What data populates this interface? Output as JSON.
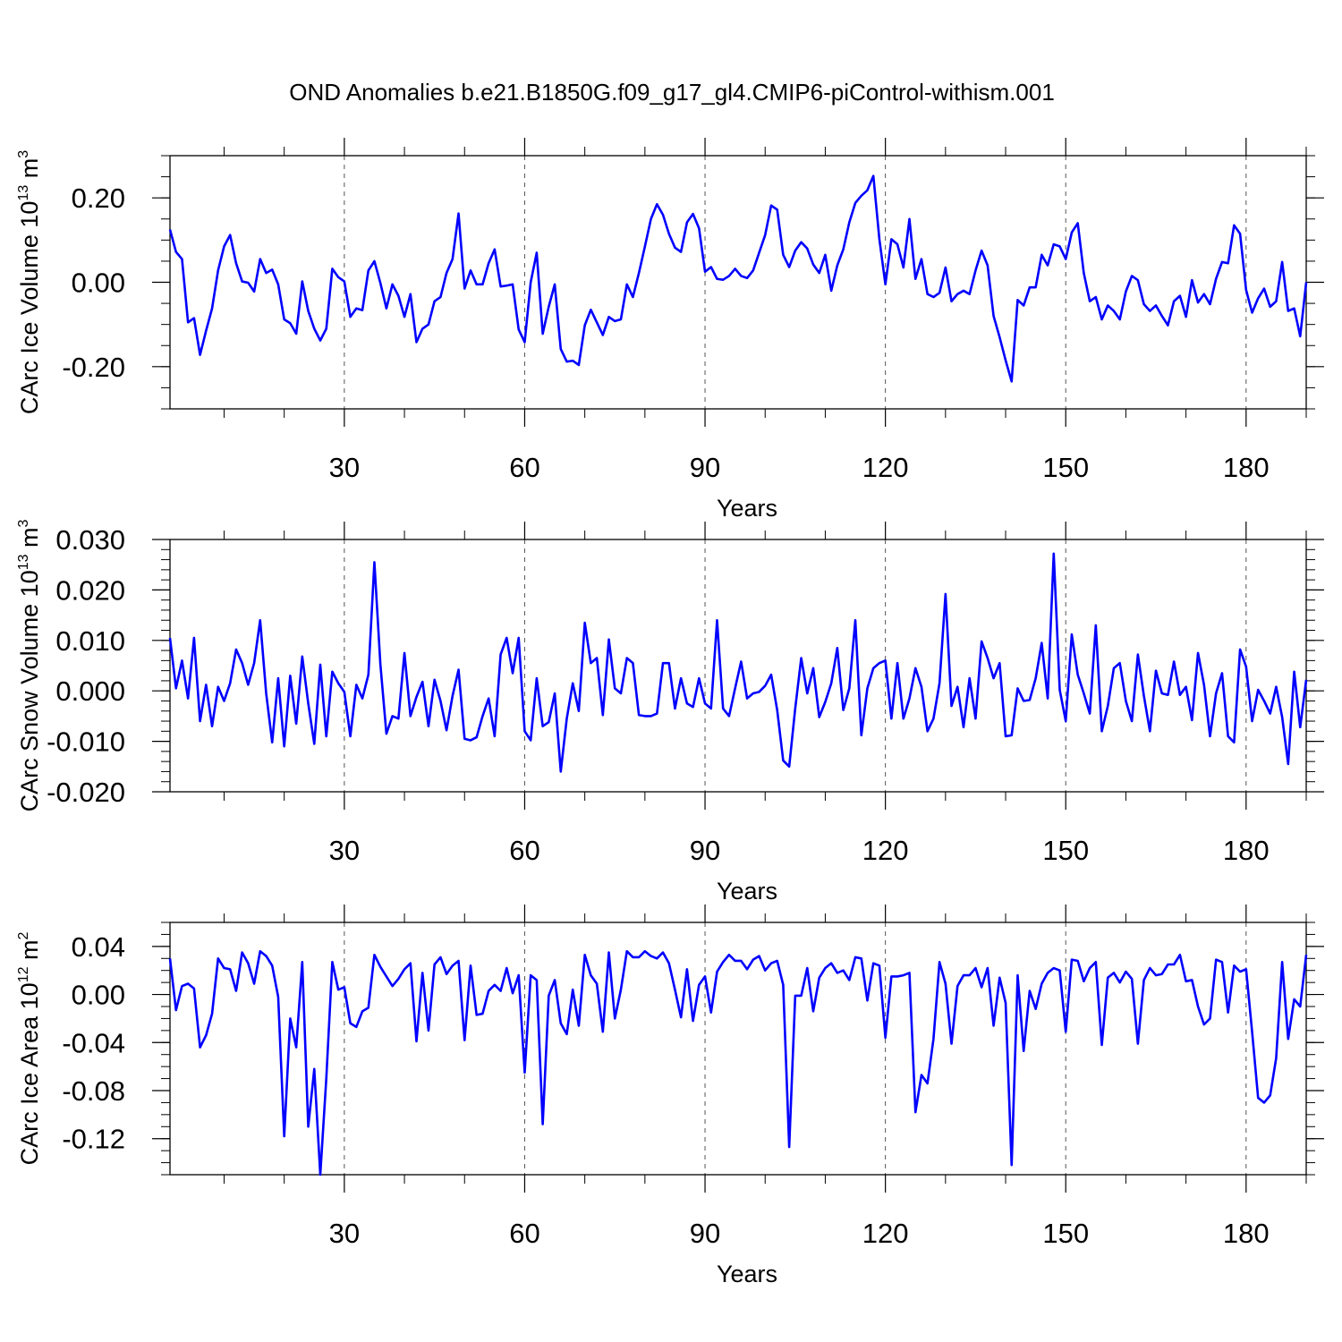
{
  "title": "OND Anomalies b.e21.B1850G.f09_g17_gl4.CMIP6-piControl-withism.001",
  "colors": {
    "series": "#0000ff",
    "axis": "#000000",
    "grid": "#555555"
  },
  "chart_data": [
    {
      "type": "line",
      "ylabel": {
        "prefix": "CArc Ice Volume 10",
        "exp": "13",
        "unit": " m",
        "unit_exp": "3"
      },
      "xlabel": "Years",
      "xlim": [
        1,
        190
      ],
      "ylim": [
        -0.3,
        0.3
      ],
      "xticks": [
        30,
        60,
        90,
        120,
        150,
        180
      ],
      "yticks": [
        -0.2,
        0.0,
        0.2
      ],
      "ytick_labels": [
        "-0.20",
        "0.00",
        "0.20"
      ],
      "yminor_step": 0.05,
      "grid": "x-dashed",
      "series": [
        {
          "x_start": 1,
          "values": [
            0.125,
            0.072,
            0.055,
            -0.095,
            -0.085,
            -0.172,
            -0.115,
            -0.062,
            0.028,
            0.085,
            0.112,
            0.045,
            0.002,
            -0.001,
            -0.022,
            0.055,
            0.022,
            0.03,
            -0.005,
            -0.088,
            -0.097,
            -0.122,
            0.002,
            -0.068,
            -0.11,
            -0.138,
            -0.11,
            0.032,
            0.012,
            0.002,
            -0.082,
            -0.062,
            -0.066,
            0.028,
            0.05,
            -0.002,
            -0.062,
            -0.005,
            -0.032,
            -0.082,
            -0.028,
            -0.142,
            -0.11,
            -0.1,
            -0.045,
            -0.035,
            0.022,
            0.055,
            0.163,
            -0.015,
            0.028,
            -0.005,
            -0.005,
            0.045,
            0.078,
            -0.01,
            -0.008,
            -0.005,
            -0.112,
            -0.142,
            0.0,
            0.07,
            -0.122,
            -0.058,
            -0.005,
            -0.158,
            -0.188,
            -0.186,
            -0.196,
            -0.102,
            -0.065,
            -0.095,
            -0.125,
            -0.082,
            -0.092,
            -0.088,
            -0.005,
            -0.035,
            0.022,
            0.085,
            0.15,
            0.185,
            0.16,
            0.115,
            0.082,
            0.072,
            0.142,
            0.162,
            0.128,
            0.025,
            0.036,
            0.008,
            0.006,
            0.015,
            0.032,
            0.015,
            0.01,
            0.028,
            0.07,
            0.112,
            0.182,
            0.172,
            0.065,
            0.036,
            0.075,
            0.095,
            0.08,
            0.042,
            0.022,
            0.065,
            -0.02,
            0.04,
            0.078,
            0.142,
            0.188,
            0.205,
            0.218,
            0.252,
            0.102,
            -0.005,
            0.102,
            0.09,
            0.035,
            0.15,
            0.008,
            0.055,
            -0.028,
            -0.035,
            -0.025,
            0.035,
            -0.045,
            -0.028,
            -0.02,
            -0.028,
            0.028,
            0.075,
            0.04,
            -0.08,
            -0.13,
            -0.185,
            -0.235,
            -0.042,
            -0.055,
            -0.012,
            -0.012,
            0.065,
            0.04,
            0.09,
            0.085,
            0.055,
            0.118,
            0.14,
            0.022,
            -0.045,
            -0.035,
            -0.088,
            -0.055,
            -0.068,
            -0.088,
            -0.022,
            0.015,
            0.005,
            -0.052,
            -0.068,
            -0.055,
            -0.08,
            -0.102,
            -0.045,
            -0.032,
            -0.082,
            0.005,
            -0.048,
            -0.028,
            -0.052,
            0.008,
            0.048,
            0.045,
            0.135,
            0.115,
            -0.018,
            -0.072,
            -0.038,
            -0.015,
            -0.058,
            -0.045,
            0.048,
            -0.068,
            -0.062,
            -0.128,
            0.0
          ]
        }
      ]
    },
    {
      "type": "line",
      "ylabel": {
        "prefix": "CArc Snow Volume 10",
        "exp": "13",
        "unit": " m",
        "unit_exp": "3"
      },
      "xlabel": "Years",
      "xlim": [
        1,
        190
      ],
      "ylim": [
        -0.02,
        0.03
      ],
      "xticks": [
        30,
        60,
        90,
        120,
        150,
        180
      ],
      "yticks": [
        -0.02,
        -0.01,
        0.0,
        0.01,
        0.02,
        0.03
      ],
      "ytick_labels": [
        "-0.020",
        "-0.010",
        "0.000",
        "0.010",
        "0.020",
        "0.030"
      ],
      "yminor_step": 0.002,
      "grid": "x-dashed",
      "series": [
        {
          "x_start": 1,
          "values": [
            0.0105,
            0.0005,
            0.006,
            -0.0015,
            0.0105,
            -0.006,
            0.0012,
            -0.007,
            0.0008,
            -0.002,
            0.0015,
            0.0082,
            0.0055,
            0.0012,
            0.0055,
            0.014,
            -0.0005,
            -0.0102,
            0.0025,
            -0.011,
            0.003,
            -0.0065,
            0.0068,
            -0.0025,
            -0.0105,
            0.0052,
            -0.009,
            0.0038,
            0.0015,
            -0.0002,
            -0.009,
            0.0012,
            -0.0015,
            0.0032,
            0.0255,
            0.0052,
            -0.0085,
            -0.005,
            -0.0055,
            0.0075,
            -0.005,
            -0.0012,
            0.0018,
            -0.007,
            0.0022,
            -0.002,
            -0.0078,
            -0.001,
            0.0042,
            -0.0095,
            -0.0098,
            -0.0092,
            -0.005,
            -0.0015,
            -0.009,
            0.0072,
            0.0105,
            0.0035,
            0.0105,
            -0.008,
            -0.0098,
            0.0025,
            -0.007,
            -0.0062,
            -0.0005,
            -0.016,
            -0.0055,
            0.0015,
            -0.004,
            0.0135,
            0.0055,
            0.0065,
            -0.0048,
            0.0102,
            0.0005,
            -0.0005,
            0.0065,
            0.0055,
            -0.0048,
            -0.005,
            -0.005,
            -0.0045,
            0.0055,
            0.0055,
            -0.0035,
            0.0025,
            -0.0025,
            -0.0032,
            0.0025,
            -0.0025,
            -0.0035,
            0.014,
            -0.0035,
            -0.005,
            0.0005,
            0.0058,
            -0.0015,
            -0.0005,
            -0.0002,
            0.001,
            0.0032,
            -0.0038,
            -0.0138,
            -0.015,
            -0.0035,
            0.0065,
            -0.0005,
            0.0045,
            -0.0052,
            -0.0022,
            0.0015,
            0.0085,
            -0.0038,
            0.0005,
            0.014,
            -0.0088,
            0.0005,
            0.0045,
            0.0055,
            0.006,
            -0.0055,
            0.0055,
            -0.0055,
            -0.0015,
            0.0045,
            0.0008,
            -0.008,
            -0.0055,
            0.0015,
            0.0192,
            -0.003,
            0.0008,
            -0.0072,
            0.0025,
            -0.0055,
            0.0098,
            0.0065,
            0.0025,
            0.0055,
            -0.009,
            -0.0088,
            0.0005,
            -0.002,
            -0.0018,
            0.0025,
            0.0095,
            -0.0015,
            0.0272,
            0.0002,
            -0.006,
            0.0112,
            0.0032,
            -0.0005,
            -0.0045,
            0.013,
            -0.008,
            -0.003,
            0.0045,
            0.0055,
            -0.002,
            -0.006,
            0.0072,
            -0.001,
            -0.008,
            0.004,
            -0.0005,
            -0.0008,
            0.0058,
            -0.0008,
            0.0008,
            -0.0058,
            0.0075,
            0.0012,
            -0.009,
            -0.0005,
            0.0035,
            -0.009,
            -0.0102,
            0.0082,
            0.0048,
            -0.006,
            0.0002,
            -0.002,
            -0.0045,
            0.0008,
            -0.0052,
            -0.0145,
            0.0038,
            -0.0072,
            0.0022
          ]
        }
      ]
    },
    {
      "type": "line",
      "ylabel": {
        "prefix": "CArc Ice Area 10",
        "exp": "12",
        "unit": " m",
        "unit_exp": "2"
      },
      "xlabel": "Years",
      "xlim": [
        1,
        190
      ],
      "ylim": [
        -0.15,
        0.06
      ],
      "xticks": [
        30,
        60,
        90,
        120,
        150,
        180
      ],
      "yticks": [
        -0.12,
        -0.08,
        -0.04,
        0.0,
        0.04
      ],
      "ytick_labels": [
        "-0.12",
        "-0.08",
        "-0.04",
        "0.00",
        "0.04"
      ],
      "yminor_step": 0.01,
      "grid": "x-dashed",
      "series": [
        {
          "x_start": 1,
          "values": [
            0.03,
            -0.013,
            0.007,
            0.009,
            0.005,
            -0.044,
            -0.034,
            -0.016,
            0.03,
            0.022,
            0.021,
            0.003,
            0.035,
            0.026,
            0.009,
            0.036,
            0.032,
            0.024,
            -0.002,
            -0.118,
            -0.02,
            -0.044,
            0.027,
            -0.11,
            -0.062,
            -0.15,
            -0.07,
            0.027,
            0.004,
            0.006,
            -0.024,
            -0.027,
            -0.014,
            -0.011,
            0.033,
            0.023,
            0.015,
            0.007,
            0.013,
            0.021,
            0.026,
            -0.039,
            0.018,
            -0.03,
            0.025,
            0.031,
            0.017,
            0.024,
            0.028,
            -0.038,
            0.024,
            -0.017,
            -0.016,
            0.003,
            0.008,
            0.003,
            0.022,
            0.001,
            0.016,
            -0.065,
            0.016,
            0.012,
            -0.108,
            -0.001,
            0.012,
            -0.024,
            -0.033,
            0.004,
            -0.026,
            0.033,
            0.016,
            0.009,
            -0.031,
            0.035,
            -0.02,
            0.004,
            0.036,
            0.031,
            0.031,
            0.036,
            0.032,
            0.03,
            0.035,
            0.026,
            0.004,
            -0.019,
            0.021,
            -0.022,
            0.008,
            0.015,
            -0.015,
            0.019,
            0.027,
            0.033,
            0.028,
            0.028,
            0.021,
            0.029,
            0.032,
            0.02,
            0.026,
            0.028,
            0.008,
            -0.127,
            -0.001,
            -0.001,
            0.022,
            -0.014,
            0.014,
            0.022,
            0.026,
            0.018,
            0.02,
            0.012,
            0.031,
            0.03,
            -0.005,
            0.026,
            0.024,
            -0.036,
            0.015,
            0.015,
            0.016,
            0.018,
            -0.098,
            -0.067,
            -0.074,
            -0.037,
            0.027,
            0.009,
            -0.041,
            0.007,
            0.016,
            0.016,
            0.022,
            0.006,
            0.022,
            -0.026,
            0.014,
            -0.007,
            -0.142,
            0.016,
            -0.047,
            0.003,
            -0.012,
            0.009,
            0.018,
            0.022,
            0.02,
            -0.031,
            0.029,
            0.028,
            0.011,
            0.022,
            0.027,
            -0.042,
            0.014,
            0.018,
            0.01,
            0.019,
            0.013,
            -0.041,
            0.012,
            0.022,
            0.016,
            0.017,
            0.025,
            0.025,
            0.033,
            0.011,
            0.012,
            -0.01,
            -0.025,
            -0.02,
            0.029,
            0.027,
            -0.015,
            0.024,
            0.019,
            0.021,
            -0.031,
            -0.086,
            -0.09,
            -0.084,
            -0.053,
            0.027,
            -0.037,
            -0.004,
            -0.01,
            0.033
          ]
        }
      ]
    }
  ]
}
